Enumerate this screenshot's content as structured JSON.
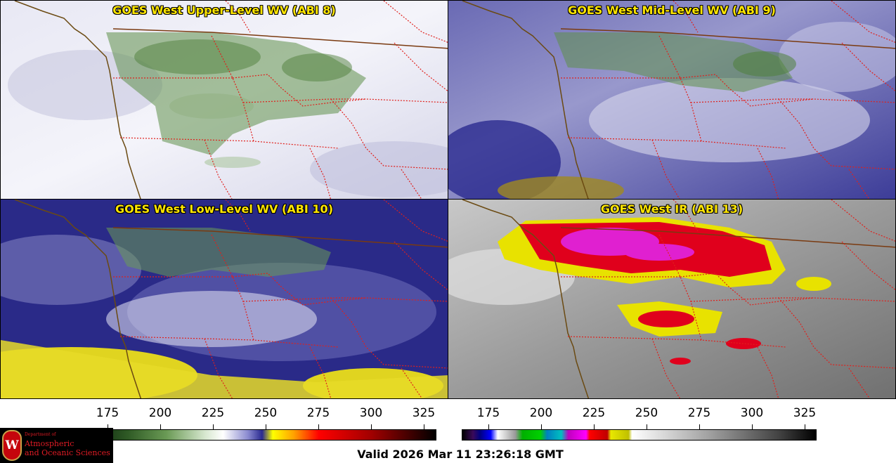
{
  "panels": [
    {
      "title": "GOES West Upper-Level WV (ABI 8)",
      "palette": "wv-upper"
    },
    {
      "title": "GOES West Mid-Level WV (ABI 9)",
      "palette": "wv-mid"
    },
    {
      "title": "GOES West Low-Level WV (ABI 10)",
      "palette": "wv-low"
    },
    {
      "title": "GOES West IR (ABI 13)",
      "palette": "ir"
    }
  ],
  "colorbars": {
    "wv": {
      "ticks": [
        "175",
        "200",
        "225",
        "250",
        "275",
        "300",
        "325"
      ]
    },
    "ir": {
      "ticks": [
        "175",
        "200",
        "225",
        "250",
        "275",
        "300",
        "325"
      ]
    }
  },
  "logo": {
    "crest": "W",
    "department": "Department of",
    "line1": "Atmospheric",
    "line2": "and Oceanic Sciences"
  },
  "valid_time": "Valid 2026 Mar 11 23:26:18 GMT",
  "colors": {
    "coastline": "#6b4a12",
    "state_borders": "#e0201c",
    "country_border": "#7a3a10",
    "title": "#ffe600"
  }
}
